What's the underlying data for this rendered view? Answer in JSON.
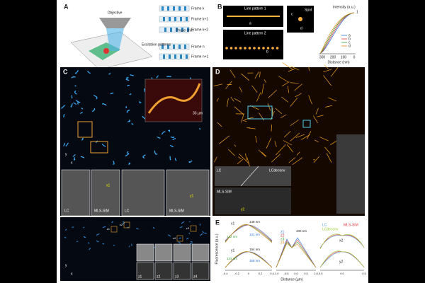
{
  "panel_a": {
    "letter": "A",
    "objective": "Objective",
    "frames": [
      "Frame k",
      "Frame k+1",
      "Frame k+2",
      "Frame n",
      "Frame n+1"
    ],
    "phase_shift": "Phase shift",
    "excitation": "Excitation patterns"
  },
  "panel_b": {
    "letter": "B",
    "line1": "Line pattern 1",
    "line2": "Line pattern 2",
    "spot": "Spot",
    "y_label": "Intensity (a.u.)",
    "x_label": "Distance (nm)",
    "x_ticks": [
      "300",
      "200",
      "100",
      "0"
    ],
    "top_tick": "1",
    "legend": [
      "a",
      "b",
      "c",
      "d"
    ],
    "markers": [
      "a",
      "b",
      "c",
      "d"
    ]
  },
  "panel_c": {
    "letter": "C",
    "depth": "33 µm",
    "axes": [
      "y",
      "x"
    ],
    "insets": [
      "LC",
      "MLS-SIM",
      "LC",
      "MLS-SIM"
    ],
    "arrows": [
      "x1",
      "y1"
    ]
  },
  "panel_d": {
    "letter": "D",
    "lc": "LC",
    "lcdeconv": "LCdeconv",
    "mls": "MLS-SIM",
    "arrow": "y2"
  },
  "panel_z": {
    "axes": [
      "y",
      "x"
    ],
    "boxes": [
      "z1",
      "z2",
      "z3",
      "z4"
    ],
    "labels": [
      "z1",
      "z2",
      "z3",
      "z4"
    ]
  },
  "panel_e": {
    "letter": "E",
    "y_label": "Fluorescence (a.u.)",
    "x_label": "Distance (µm)",
    "x1": "x1",
    "y1": "y1",
    "x2": "x2",
    "y2": "y2",
    "fwhm": [
      "148 nm",
      "131 nm",
      "142 nm",
      "154 nm",
      "158 nm",
      "133 nm"
    ],
    "gap": "400 nm",
    "legend_z": [
      "z1",
      "z2",
      "z3",
      "z4"
    ],
    "legend_m": [
      "LC",
      "MLS-SIM",
      "LCdeconv"
    ],
    "ticks1": [
      "-0.4",
      "-0.2",
      "0",
      "0.2",
      "0.4"
    ],
    "ticks2": [
      "-1.0",
      "-0.5",
      "0.0",
      "0.5",
      "1.0"
    ],
    "ticks3": [
      "-0.5",
      "0.0",
      "0.5"
    ]
  }
}
